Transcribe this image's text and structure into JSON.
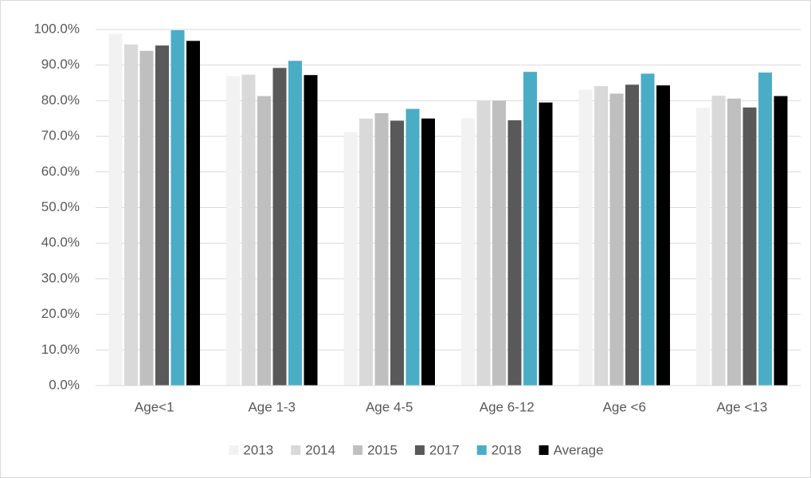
{
  "chart_data": {
    "type": "bar",
    "categories": [
      "Age<1",
      "Age 1-3",
      "Age 4-5",
      "Age 6-12",
      "Age <6",
      "Age <13"
    ],
    "series": [
      {
        "name": "2013",
        "color": "#f2f2f2",
        "values": [
          98.8,
          86.9,
          71.2,
          75.1,
          83.1,
          78.0
        ]
      },
      {
        "name": "2014",
        "color": "#d9d9d9",
        "values": [
          95.8,
          87.3,
          75.0,
          80.0,
          84.1,
          81.4
        ]
      },
      {
        "name": "2015",
        "color": "#bfbfbf",
        "values": [
          94.0,
          81.3,
          76.5,
          80.0,
          82.0,
          80.6
        ]
      },
      {
        "name": "2017",
        "color": "#595959",
        "values": [
          95.5,
          89.2,
          74.4,
          74.5,
          84.5,
          78.1
        ]
      },
      {
        "name": "2018",
        "color": "#4bacc6",
        "values": [
          99.8,
          91.2,
          77.7,
          88.1,
          87.6,
          87.9
        ]
      },
      {
        "name": "Average",
        "color": "#000000",
        "values": [
          96.8,
          87.2,
          75.0,
          79.5,
          84.3,
          81.3
        ]
      }
    ],
    "ylim": [
      0,
      100
    ],
    "yticks": [
      {
        "value": 0,
        "label": "0.0%"
      },
      {
        "value": 10,
        "label": "10.0%"
      },
      {
        "value": 20,
        "label": "20.0%"
      },
      {
        "value": 30,
        "label": "30.0%"
      },
      {
        "value": 40,
        "label": "40.0%"
      },
      {
        "value": 50,
        "label": "50.0%"
      },
      {
        "value": 60,
        "label": "60.0%"
      },
      {
        "value": 70,
        "label": "70.0%"
      },
      {
        "value": 80,
        "label": "80.0%"
      },
      {
        "value": 90,
        "label": "90.0%"
      },
      {
        "value": 100,
        "label": "100.0%"
      }
    ],
    "grid": true,
    "legend": "bottom"
  }
}
